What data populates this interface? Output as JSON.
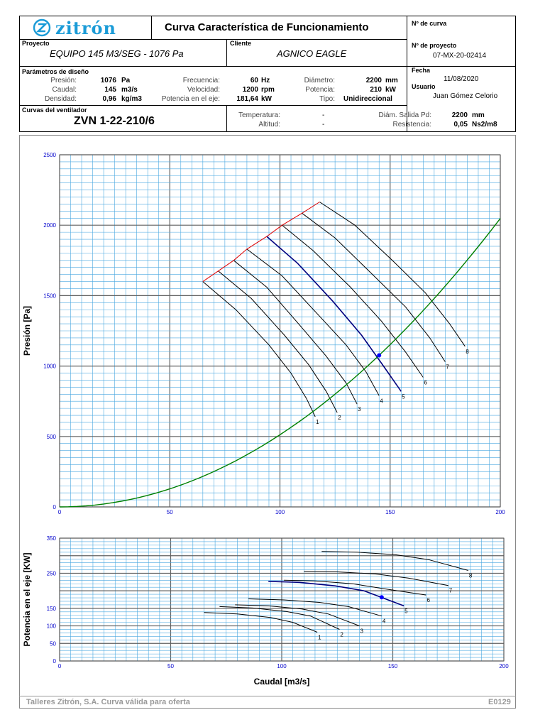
{
  "header": {
    "logo_text": "zitrón",
    "title": "Curva Característica de Funcionamiento",
    "curve_no_label": "Nº de curva",
    "curve_no_value": "",
    "project_label": "Proyecto",
    "project_value": "EQUIPO 145 M3/SEG - 1076 Pa",
    "client_label": "Cliente",
    "client_value": "AGNICO EAGLE",
    "project_no_label": "Nº de proyecto",
    "project_no_value": "07-MX-20-02414",
    "date_label": "Fecha",
    "date_value": "11/08/2020",
    "user_label": "Usuario",
    "user_value": "Juan Gómez Celorio"
  },
  "params": {
    "title": "Parámetros de diseño",
    "presion_label": "Presión:",
    "presion_value": "1076",
    "presion_unit": "Pa",
    "caudal_label": "Caudal:",
    "caudal_value": "145",
    "caudal_unit": "m3/s",
    "densidad_label": "Densidad:",
    "densidad_value": "0,96",
    "densidad_unit": "kg/m3",
    "frecuencia_label": "Frecuencia:",
    "frecuencia_value": "60",
    "frecuencia_unit": "Hz",
    "velocidad_label": "Velocidad:",
    "velocidad_value": "1200",
    "velocidad_unit": "rpm",
    "potencia_eje_label": "Potencia en el eje:",
    "potencia_eje_value": "181,64",
    "potencia_eje_unit": "kW",
    "diametro_label": "Diámetro:",
    "diametro_value": "2200",
    "diametro_unit": "mm",
    "potencia_label": "Potencia:",
    "potencia_value": "210",
    "potencia_unit": "kW",
    "tipo_label": "Tipo:",
    "tipo_value": "Unidireccional"
  },
  "fan": {
    "title": "Curvas del ventilador",
    "model": "ZVN 1-22-210/6",
    "temperatura_label": "Temperatura:",
    "temperatura_value": "-",
    "altitud_label": "Altitud:",
    "altitud_value": "-",
    "salida_label": "Diám. Salida Pd:",
    "salida_value": "2200",
    "salida_unit": "mm",
    "resistencia_label": "Resistencia:",
    "resistencia_value": "0,05",
    "resistencia_unit": "Ns2/m8"
  },
  "footer": {
    "left": "Talleres Zitrón, S.A. Curva válida para oferta",
    "right": "E0129"
  },
  "colors": {
    "grid_minor": "#4aa8e0",
    "grid_major": "#606060",
    "fan_curve": "#000000",
    "operating_curve": "#00007f",
    "system_curve": "#008000",
    "surge_line": "#e00000",
    "operating_point": "#0000ff",
    "tick_labels": "#0000cc",
    "logo": "#1a9bd7"
  },
  "chart_data": [
    {
      "type": "line",
      "ylabel": "Presión [Pa]",
      "xlim": [
        0,
        200
      ],
      "ylim": [
        0,
        2500
      ],
      "x_ticks": [
        "0",
        "50",
        "100",
        "150",
        "200"
      ],
      "y_ticks": [
        "0",
        "500",
        "1000",
        "1500",
        "2000",
        "2500"
      ],
      "grid": true,
      "series": [
        {
          "name": "1",
          "x": [
            65,
            80,
            95,
            105,
            112,
            116
          ],
          "y": [
            1600,
            1400,
            1150,
            950,
            770,
            640
          ]
        },
        {
          "name": "2",
          "x": [
            72,
            87,
            102,
            113,
            121,
            126
          ],
          "y": [
            1675,
            1480,
            1220,
            1010,
            820,
            670
          ]
        },
        {
          "name": "3",
          "x": [
            79,
            94,
            109,
            121,
            130,
            135
          ],
          "y": [
            1750,
            1560,
            1290,
            1070,
            880,
            730
          ]
        },
        {
          "name": "4",
          "x": [
            85,
            101,
            117,
            130,
            139,
            145
          ],
          "y": [
            1830,
            1640,
            1370,
            1150,
            960,
            790
          ]
        },
        {
          "name": "5",
          "x": [
            94,
            108,
            124,
            137,
            147,
            155
          ],
          "y": [
            1920,
            1730,
            1460,
            1220,
            1000,
            820
          ]
        },
        {
          "name": "6",
          "x": [
            101,
            115,
            132,
            146,
            157,
            165
          ],
          "y": [
            2000,
            1820,
            1560,
            1320,
            1100,
            920
          ]
        },
        {
          "name": "7",
          "x": [
            110,
            125,
            142,
            157,
            168,
            175
          ],
          "y": [
            2085,
            1910,
            1650,
            1420,
            1200,
            1030
          ]
        },
        {
          "name": "8",
          "x": [
            118,
            134,
            151,
            166,
            177,
            184
          ],
          "y": [
            2165,
            2000,
            1750,
            1520,
            1300,
            1140
          ]
        },
        {
          "name": "",
          "x": [
            0,
            25,
            50,
            75,
            100,
            125,
            150,
            175,
            200
          ],
          "y": [
            0,
            32,
            128,
            288,
            512,
            800,
            1152,
            1568,
            2048
          ]
        },
        {
          "name": "",
          "x": [
            65,
            72,
            79,
            85,
            94,
            101,
            110,
            118
          ],
          "y": [
            1600,
            1675,
            1750,
            1830,
            1920,
            2000,
            2085,
            2165
          ]
        }
      ],
      "operating_point": {
        "x": 145,
        "y": 1076
      },
      "operating_series": "5"
    },
    {
      "type": "line",
      "xlabel": "Caudal [m3/s]",
      "ylabel": "Potencia en el eje [KW]",
      "xlim": [
        0,
        200
      ],
      "ylim": [
        0,
        350
      ],
      "x_ticks": [
        "0",
        "50",
        "100",
        "150",
        "200"
      ],
      "y_ticks": [
        "0",
        "50",
        "100",
        "150",
        "250",
        "350"
      ],
      "grid": true,
      "series": [
        {
          "name": "1",
          "x": [
            65,
            80,
            95,
            105,
            116
          ],
          "y": [
            138,
            134,
            124,
            110,
            82
          ]
        },
        {
          "name": "2",
          "x": [
            72,
            87,
            102,
            113,
            126
          ],
          "y": [
            155,
            151,
            141,
            128,
            90
          ]
        },
        {
          "name": "3",
          "x": [
            79,
            94,
            109,
            121,
            135
          ],
          "y": [
            160,
            157,
            148,
            134,
            100
          ]
        },
        {
          "name": "4",
          "x": [
            85,
            101,
            117,
            130,
            145
          ],
          "y": [
            177,
            174,
            167,
            155,
            128
          ]
        },
        {
          "name": "5",
          "x": [
            94,
            108,
            124,
            137,
            155
          ],
          "y": [
            227,
            224,
            214,
            200,
            157
          ]
        },
        {
          "name": "6",
          "x": [
            101,
            115,
            132,
            146,
            165
          ],
          "y": [
            230,
            228,
            220,
            206,
            188
          ]
        },
        {
          "name": "7",
          "x": [
            110,
            125,
            142,
            157,
            175
          ],
          "y": [
            255,
            254,
            248,
            236,
            215
          ]
        },
        {
          "name": "8",
          "x": [
            118,
            134,
            151,
            166,
            184
          ],
          "y": [
            312,
            310,
            303,
            289,
            258
          ]
        }
      ],
      "operating_point": {
        "x": 145,
        "y": 181.64
      },
      "operating_series": "5"
    }
  ]
}
